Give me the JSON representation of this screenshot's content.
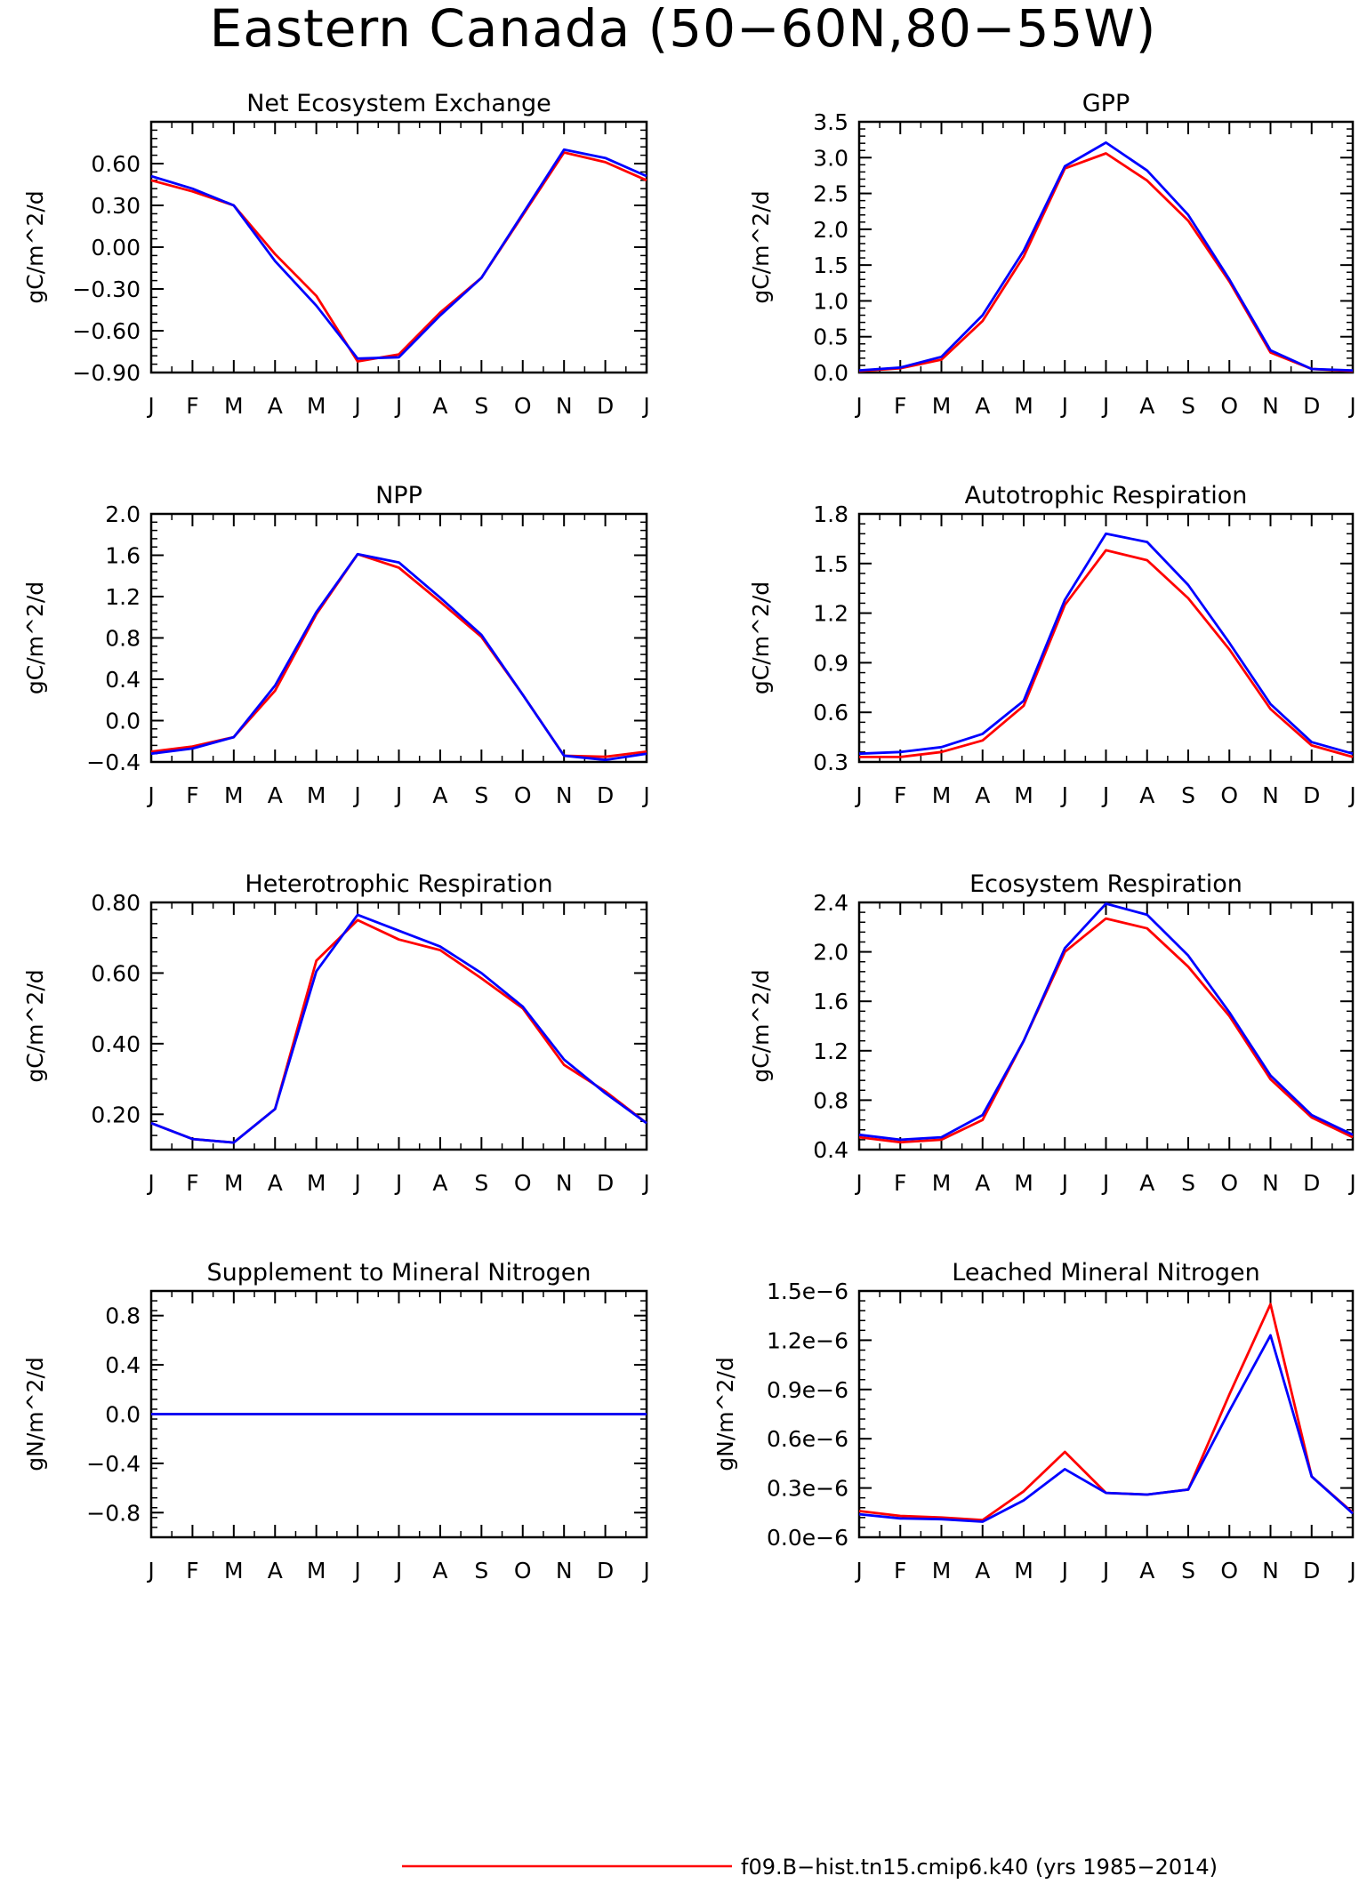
{
  "figure_title": "Eastern Canada (50−60N,80−55W)",
  "legend": [
    {
      "label": "f09.B−hist.tn15.cmip6.k40 (yrs 1985−2014)",
      "color": "#ff0000"
    }
  ],
  "colors": {
    "series_red": "#ff0000",
    "series_blue": "#0000ff"
  },
  "chart_data": [
    {
      "type": "line",
      "title": "Net Ecosystem Exchange",
      "ylabel": "gC/m^2/d",
      "ylim": [
        -0.9,
        0.9
      ],
      "y_ticks": [
        "0.60",
        "0.30",
        "0.00",
        "−0.30",
        "−0.60",
        "−0.90"
      ],
      "y_tick_values": [
        0.6,
        0.3,
        0.0,
        -0.3,
        -0.6,
        -0.9
      ],
      "x_ticks": [
        "J",
        "F",
        "M",
        "A",
        "M",
        "J",
        "J",
        "A",
        "S",
        "O",
        "N",
        "D",
        "J"
      ],
      "series": [
        {
          "color": "#ff0000",
          "values": [
            0.48,
            0.4,
            0.3,
            -0.05,
            -0.35,
            -0.82,
            -0.77,
            -0.47,
            -0.22,
            0.23,
            0.68,
            0.61,
            0.48
          ]
        },
        {
          "color": "#0000ff",
          "values": [
            0.51,
            0.42,
            0.3,
            -0.1,
            -0.42,
            -0.8,
            -0.79,
            -0.49,
            -0.22,
            0.24,
            0.7,
            0.64,
            0.51
          ]
        }
      ]
    },
    {
      "type": "line",
      "title": "GPP",
      "ylabel": "gC/m^2/d",
      "ylim": [
        0,
        3.5
      ],
      "y_ticks": [
        "3.5",
        "3.0",
        "2.5",
        "2.0",
        "1.5",
        "1.0",
        "0.5",
        "0.0"
      ],
      "y_tick_values": [
        3.5,
        3.0,
        2.5,
        2.0,
        1.5,
        1.0,
        0.5,
        0.0
      ],
      "x_ticks": [
        "J",
        "F",
        "M",
        "A",
        "M",
        "J",
        "J",
        "A",
        "S",
        "O",
        "N",
        "D",
        "J"
      ],
      "series": [
        {
          "color": "#ff0000",
          "values": [
            0.02,
            0.06,
            0.18,
            0.72,
            1.62,
            2.85,
            3.06,
            2.68,
            2.12,
            1.27,
            0.28,
            0.05,
            0.02
          ]
        },
        {
          "color": "#0000ff",
          "values": [
            0.03,
            0.07,
            0.22,
            0.8,
            1.7,
            2.88,
            3.21,
            2.82,
            2.2,
            1.3,
            0.31,
            0.05,
            0.03
          ]
        }
      ]
    },
    {
      "type": "line",
      "title": "NPP",
      "ylabel": "gC/m^2/d",
      "ylim": [
        -0.4,
        2.0
      ],
      "y_ticks": [
        "2.0",
        "1.6",
        "1.2",
        "0.8",
        "0.4",
        "0.0",
        "−0.4"
      ],
      "y_tick_values": [
        2.0,
        1.6,
        1.2,
        0.8,
        0.4,
        0.0,
        -0.4
      ],
      "x_ticks": [
        "J",
        "F",
        "M",
        "A",
        "M",
        "J",
        "J",
        "A",
        "S",
        "O",
        "N",
        "D",
        "J"
      ],
      "series": [
        {
          "color": "#ff0000",
          "values": [
            -0.3,
            -0.25,
            -0.16,
            0.29,
            1.03,
            1.61,
            1.48,
            1.15,
            0.81,
            0.25,
            -0.34,
            -0.35,
            -0.3
          ]
        },
        {
          "color": "#0000ff",
          "values": [
            -0.32,
            -0.27,
            -0.16,
            0.34,
            1.05,
            1.61,
            1.53,
            1.19,
            0.83,
            0.25,
            -0.34,
            -0.38,
            -0.32
          ]
        }
      ]
    },
    {
      "type": "line",
      "title": "Autotrophic Respiration",
      "ylabel": "gC/m^2/d",
      "ylim": [
        0.3,
        1.8
      ],
      "y_ticks": [
        "1.8",
        "1.5",
        "1.2",
        "0.9",
        "0.6",
        "0.3"
      ],
      "y_tick_values": [
        1.8,
        1.5,
        1.2,
        0.9,
        0.6,
        0.3
      ],
      "x_ticks": [
        "J",
        "F",
        "M",
        "A",
        "M",
        "J",
        "J",
        "A",
        "S",
        "O",
        "N",
        "D",
        "J"
      ],
      "series": [
        {
          "color": "#ff0000",
          "values": [
            0.33,
            0.33,
            0.36,
            0.43,
            0.64,
            1.25,
            1.58,
            1.52,
            1.29,
            0.98,
            0.62,
            0.4,
            0.33
          ]
        },
        {
          "color": "#0000ff",
          "values": [
            0.35,
            0.36,
            0.39,
            0.47,
            0.67,
            1.28,
            1.68,
            1.63,
            1.37,
            1.02,
            0.65,
            0.42,
            0.35
          ]
        }
      ]
    },
    {
      "type": "line",
      "title": "Heterotrophic Respiration",
      "ylabel": "gC/m^2/d",
      "ylim": [
        0.1,
        0.8
      ],
      "y_ticks": [
        "0.80",
        "0.60",
        "0.40",
        "0.20"
      ],
      "y_tick_values": [
        0.8,
        0.6,
        0.4,
        0.2
      ],
      "x_ticks": [
        "J",
        "F",
        "M",
        "A",
        "M",
        "J",
        "J",
        "A",
        "S",
        "O",
        "N",
        "D",
        "J"
      ],
      "series": [
        {
          "color": "#ff0000",
          "values": [
            0.175,
            0.13,
            0.12,
            0.215,
            0.635,
            0.75,
            0.695,
            0.665,
            0.585,
            0.5,
            0.34,
            0.265,
            0.175
          ]
        },
        {
          "color": "#0000ff",
          "values": [
            0.175,
            0.13,
            0.12,
            0.215,
            0.605,
            0.765,
            0.72,
            0.675,
            0.6,
            0.505,
            0.355,
            0.26,
            0.175
          ]
        }
      ]
    },
    {
      "type": "line",
      "title": "Ecosystem Respiration",
      "ylabel": "gC/m^2/d",
      "ylim": [
        0.4,
        2.4
      ],
      "y_ticks": [
        "2.4",
        "2.0",
        "1.6",
        "1.2",
        "0.8",
        "0.4"
      ],
      "y_tick_values": [
        2.4,
        2.0,
        1.6,
        1.2,
        0.8,
        0.4
      ],
      "x_ticks": [
        "J",
        "F",
        "M",
        "A",
        "M",
        "J",
        "J",
        "A",
        "S",
        "O",
        "N",
        "D",
        "J"
      ],
      "series": [
        {
          "color": "#ff0000",
          "values": [
            0.5,
            0.46,
            0.48,
            0.64,
            1.28,
            2.0,
            2.27,
            2.19,
            1.88,
            1.48,
            0.97,
            0.66,
            0.5
          ]
        },
        {
          "color": "#0000ff",
          "values": [
            0.52,
            0.48,
            0.5,
            0.68,
            1.28,
            2.03,
            2.39,
            2.3,
            1.97,
            1.51,
            1.0,
            0.68,
            0.52
          ]
        }
      ]
    },
    {
      "type": "line",
      "title": "Supplement to Mineral Nitrogen",
      "ylabel": "gN/m^2/d",
      "ylim": [
        -1.0,
        1.0
      ],
      "y_ticks": [
        "0.8",
        "0.4",
        "0.0",
        "−0.4",
        "−0.8"
      ],
      "y_tick_values": [
        0.8,
        0.4,
        0.0,
        -0.4,
        -0.8
      ],
      "x_ticks": [
        "J",
        "F",
        "M",
        "A",
        "M",
        "J",
        "J",
        "A",
        "S",
        "O",
        "N",
        "D",
        "J"
      ],
      "series": [
        {
          "color": "#ff0000",
          "values": [
            0,
            0,
            0,
            0,
            0,
            0,
            0,
            0,
            0,
            0,
            0,
            0,
            0
          ]
        },
        {
          "color": "#0000ff",
          "values": [
            0,
            0,
            0,
            0,
            0,
            0,
            0,
            0,
            0,
            0,
            0,
            0,
            0
          ]
        }
      ]
    },
    {
      "type": "line",
      "title": "Leached Mineral Nitrogen",
      "ylabel": "gN/m^2/d",
      "ylim": [
        0,
        1.5e-06
      ],
      "y_ticks": [
        "1.5e−6",
        "1.2e−6",
        "0.9e−6",
        "0.6e−6",
        "0.3e−6",
        "0.0e−6"
      ],
      "y_tick_values": [
        1.5e-06,
        1.2e-06,
        9e-07,
        6e-07,
        3e-07,
        0.0
      ],
      "x_ticks": [
        "J",
        "F",
        "M",
        "A",
        "M",
        "J",
        "J",
        "A",
        "S",
        "O",
        "N",
        "D",
        "J"
      ],
      "series": [
        {
          "color": "#ff0000",
          "values": [
            1.6e-07,
            1.3e-07,
            1.2e-07,
            1.05e-07,
            2.8e-07,
            5.2e-07,
            2.7e-07,
            2.6e-07,
            2.9e-07,
            8.7e-07,
            1.42e-06,
            3.7e-07,
            1.5e-07
          ]
        },
        {
          "color": "#0000ff",
          "values": [
            1.4e-07,
            1.15e-07,
            1.1e-07,
            9.5e-08,
            2.25e-07,
            4.15e-07,
            2.7e-07,
            2.6e-07,
            2.9e-07,
            7.7e-07,
            1.23e-06,
            3.7e-07,
            1.45e-07
          ]
        }
      ]
    }
  ]
}
